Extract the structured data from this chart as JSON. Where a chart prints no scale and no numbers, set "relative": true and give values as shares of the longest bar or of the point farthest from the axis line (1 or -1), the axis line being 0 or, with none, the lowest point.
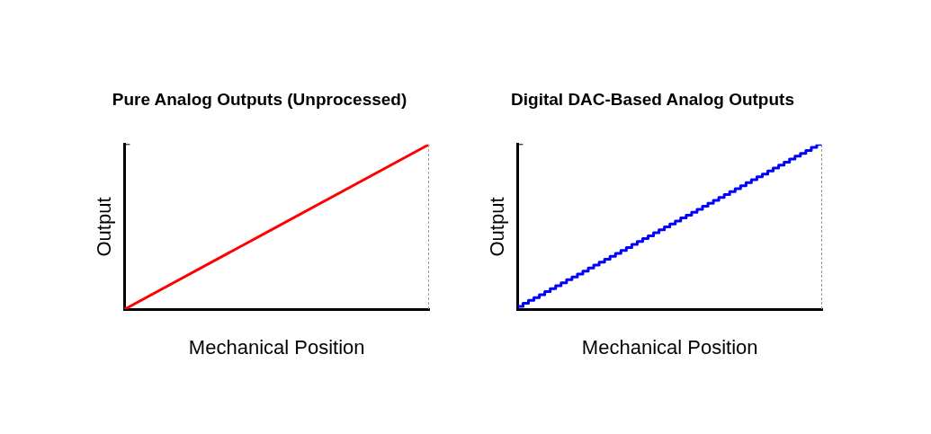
{
  "chart_data": [
    {
      "type": "line",
      "title": "Pure Analog Outputs (Unprocessed)",
      "xlabel": "Mechanical Position",
      "ylabel": "Output",
      "relative": true,
      "legend": false,
      "categories": [
        null,
        null
      ],
      "series": [
        {
          "color": "#ff0000",
          "values": [
            0,
            1
          ]
        }
      ]
    },
    {
      "type": "step",
      "title": "Digital DAC-Based Analog Outputs",
      "xlabel": "Mechanical Position",
      "ylabel": "Output",
      "relative": true,
      "legend": false,
      "categories": [
        null,
        null,
        null,
        null,
        null,
        null,
        null,
        null,
        null,
        null,
        null,
        null,
        null,
        null,
        null,
        null,
        null,
        null,
        null,
        null,
        null,
        null,
        null,
        null,
        null,
        null,
        null,
        null,
        null,
        null,
        null,
        null,
        null,
        null,
        null,
        null,
        null,
        null,
        null,
        null,
        null,
        null,
        null,
        null,
        null,
        null,
        null,
        null,
        null,
        null,
        null,
        null,
        null,
        null,
        null,
        null,
        null
      ],
      "series": [
        {
          "color": "#0000ff",
          "values": [
            0.018,
            0.036,
            0.054,
            0.071,
            0.089,
            0.107,
            0.125,
            0.143,
            0.161,
            0.179,
            0.196,
            0.214,
            0.232,
            0.25,
            0.268,
            0.286,
            0.304,
            0.321,
            0.339,
            0.357,
            0.375,
            0.393,
            0.411,
            0.429,
            0.446,
            0.464,
            0.482,
            0.5,
            0.518,
            0.536,
            0.554,
            0.571,
            0.589,
            0.607,
            0.625,
            0.643,
            0.661,
            0.679,
            0.696,
            0.714,
            0.732,
            0.75,
            0.768,
            0.786,
            0.804,
            0.821,
            0.839,
            0.857,
            0.875,
            0.893,
            0.911,
            0.929,
            0.946,
            0.964,
            0.982,
            1,
            1
          ]
        }
      ]
    }
  ]
}
